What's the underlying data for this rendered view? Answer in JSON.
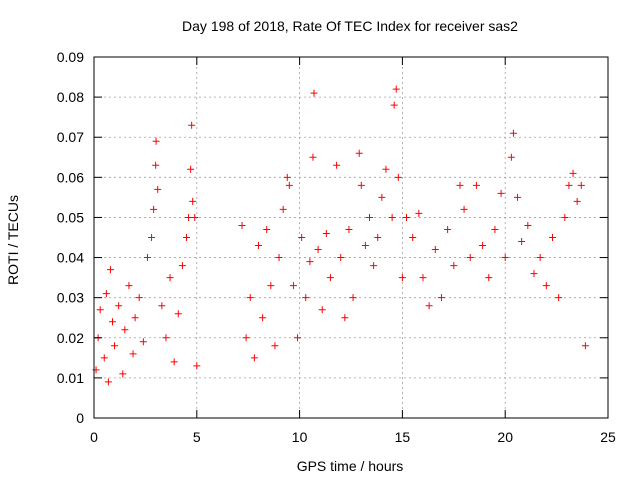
{
  "chart_data": {
    "type": "scatter",
    "title": "Day 198 of 2018, Rate Of TEC Index for receiver sas2",
    "xlabel": "GPS time / hours",
    "ylabel": "ROTI / TECUs",
    "xlim": [
      0,
      25
    ],
    "ylim": [
      0,
      0.09
    ],
    "x_ticks": [
      "0",
      "5",
      "10",
      "15",
      "20",
      "25"
    ],
    "y_ticks": [
      "0",
      "0.01",
      "0.02",
      "0.03",
      "0.04",
      "0.05",
      "0.06",
      "0.07",
      "0.08",
      "0.09"
    ],
    "x_tick_values": [
      0,
      5,
      10,
      15,
      20,
      25
    ],
    "y_tick_values": [
      0,
      0.01,
      0.02,
      0.03,
      0.04,
      0.05,
      0.06,
      0.07,
      0.08,
      0.09
    ],
    "grid": true,
    "marker": "+",
    "color": "#ff0000",
    "series": [
      {
        "name": "ROTI",
        "points": [
          [
            0.1,
            0.012
          ],
          [
            0.2,
            0.02
          ],
          [
            0.3,
            0.027
          ],
          [
            0.5,
            0.015
          ],
          [
            0.6,
            0.031
          ],
          [
            0.7,
            0.009
          ],
          [
            0.8,
            0.037
          ],
          [
            0.9,
            0.024
          ],
          [
            1.0,
            0.018
          ],
          [
            1.2,
            0.028
          ],
          [
            1.4,
            0.011
          ],
          [
            1.5,
            0.022
          ],
          [
            1.7,
            0.033
          ],
          [
            1.9,
            0.016
          ],
          [
            2.0,
            0.025
          ],
          [
            2.2,
            0.03
          ],
          [
            2.4,
            0.019
          ],
          [
            2.6,
            0.04
          ],
          [
            2.8,
            0.045
          ],
          [
            2.9,
            0.052
          ],
          [
            3.0,
            0.063
          ],
          [
            3.02,
            0.069
          ],
          [
            3.1,
            0.057
          ],
          [
            3.3,
            0.028
          ],
          [
            3.5,
            0.02
          ],
          [
            3.7,
            0.035
          ],
          [
            3.9,
            0.014
          ],
          [
            4.1,
            0.026
          ],
          [
            4.3,
            0.038
          ],
          [
            4.5,
            0.045
          ],
          [
            4.6,
            0.05
          ],
          [
            4.7,
            0.062
          ],
          [
            4.75,
            0.073
          ],
          [
            4.8,
            0.054
          ],
          [
            4.9,
            0.05
          ],
          [
            5.0,
            0.013
          ],
          [
            7.2,
            0.048
          ],
          [
            7.4,
            0.02
          ],
          [
            7.6,
            0.03
          ],
          [
            7.8,
            0.015
          ],
          [
            8.0,
            0.043
          ],
          [
            8.2,
            0.025
          ],
          [
            8.4,
            0.047
          ],
          [
            8.6,
            0.033
          ],
          [
            8.8,
            0.018
          ],
          [
            9.0,
            0.04
          ],
          [
            9.2,
            0.052
          ],
          [
            9.4,
            0.06
          ],
          [
            9.5,
            0.058
          ],
          [
            9.7,
            0.033
          ],
          [
            9.9,
            0.02
          ],
          [
            10.1,
            0.045
          ],
          [
            10.3,
            0.03
          ],
          [
            10.5,
            0.039
          ],
          [
            10.65,
            0.065
          ],
          [
            10.7,
            0.081
          ],
          [
            10.9,
            0.042
          ],
          [
            11.1,
            0.027
          ],
          [
            11.3,
            0.046
          ],
          [
            11.5,
            0.035
          ],
          [
            11.8,
            0.063
          ],
          [
            12.0,
            0.04
          ],
          [
            12.2,
            0.025
          ],
          [
            12.4,
            0.047
          ],
          [
            12.6,
            0.03
          ],
          [
            12.9,
            0.066
          ],
          [
            13.0,
            0.058
          ],
          [
            13.2,
            0.043
          ],
          [
            13.4,
            0.05
          ],
          [
            13.6,
            0.038
          ],
          [
            13.8,
            0.045
          ],
          [
            14.0,
            0.055
          ],
          [
            14.2,
            0.062
          ],
          [
            14.5,
            0.05
          ],
          [
            14.6,
            0.078
          ],
          [
            14.7,
            0.082
          ],
          [
            14.8,
            0.06
          ],
          [
            15.0,
            0.035
          ],
          [
            15.2,
            0.05
          ],
          [
            15.5,
            0.045
          ],
          [
            15.8,
            0.051
          ],
          [
            16.0,
            0.035
          ],
          [
            16.3,
            0.028
          ],
          [
            16.6,
            0.042
          ],
          [
            16.9,
            0.03
          ],
          [
            17.2,
            0.047
          ],
          [
            17.5,
            0.038
          ],
          [
            17.8,
            0.058
          ],
          [
            18.0,
            0.052
          ],
          [
            18.3,
            0.04
          ],
          [
            18.6,
            0.058
          ],
          [
            18.9,
            0.043
          ],
          [
            19.2,
            0.035
          ],
          [
            19.5,
            0.047
          ],
          [
            19.8,
            0.056
          ],
          [
            20.0,
            0.04
          ],
          [
            20.3,
            0.065
          ],
          [
            20.4,
            0.071
          ],
          [
            20.6,
            0.055
          ],
          [
            20.8,
            0.044
          ],
          [
            21.1,
            0.048
          ],
          [
            21.4,
            0.036
          ],
          [
            21.7,
            0.04
          ],
          [
            22.0,
            0.033
          ],
          [
            22.3,
            0.045
          ],
          [
            22.6,
            0.03
          ],
          [
            22.9,
            0.05
          ],
          [
            23.1,
            0.058
          ],
          [
            23.3,
            0.061
          ],
          [
            23.5,
            0.054
          ],
          [
            23.7,
            0.058
          ],
          [
            23.9,
            0.018
          ]
        ]
      }
    ]
  }
}
